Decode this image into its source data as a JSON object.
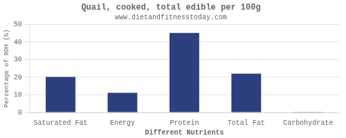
{
  "chart_data": {
    "type": "bar",
    "title": "Quail, cooked, total edible per 100g",
    "subtitle": "www.dietandfitnesstoday.com",
    "xlabel": "Different Nutrients",
    "ylabel": "Percentage of RDH (%)",
    "categories": [
      "Saturated Fat",
      "Energy",
      "Protein",
      "Total Fat",
      "Carbohydrate"
    ],
    "values": [
      20.2,
      11.2,
      45.2,
      22.0,
      0.3
    ],
    "color": "#2e3f80",
    "ylim": [
      0,
      50
    ],
    "yticks": [
      0,
      10,
      20,
      30,
      40,
      50
    ],
    "grid": true
  }
}
